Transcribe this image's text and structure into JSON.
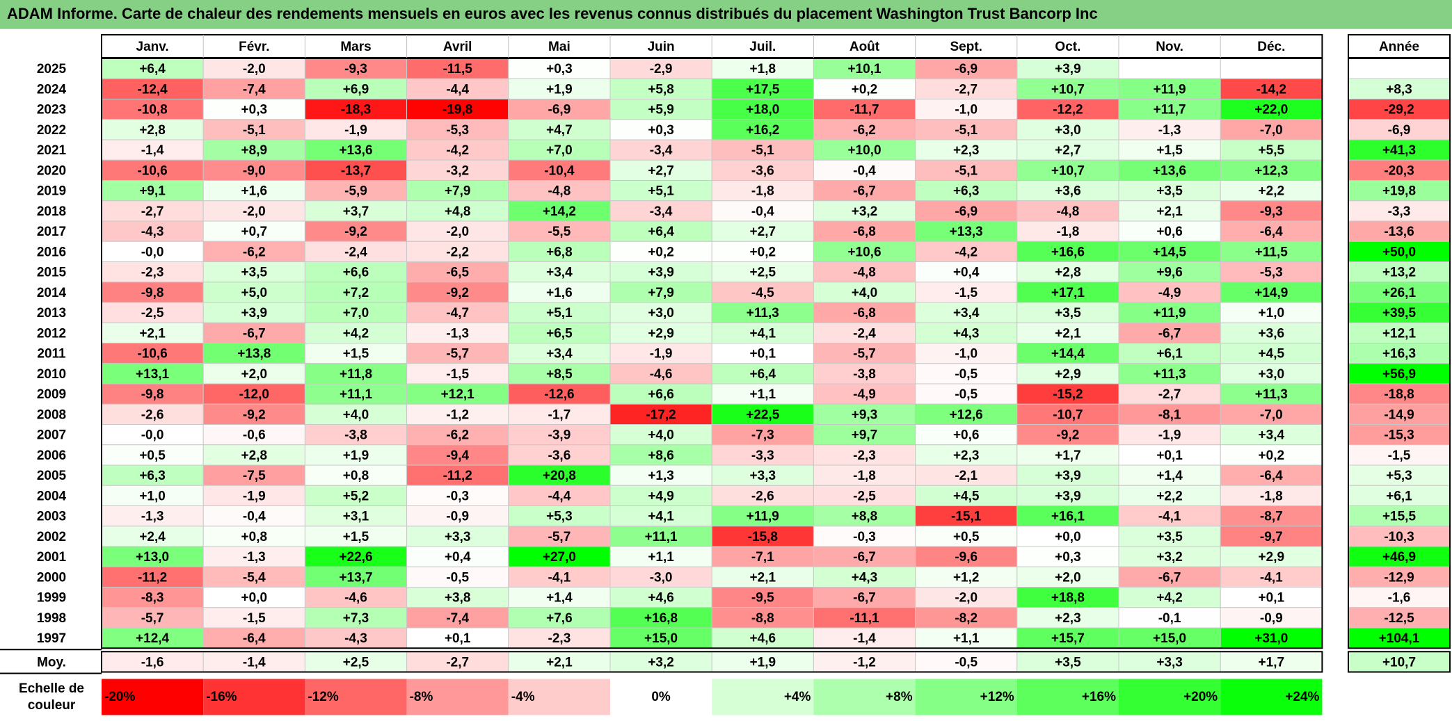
{
  "title": "ADAM Informe. Carte de chaleur des rendements mensuels en euros avec les revenus connus distribués du placement Washington Trust Bancorp Inc",
  "chart_data": {
    "type": "heatmap",
    "title": "ADAM Informe. Carte de chaleur des rendements mensuels en euros avec les revenus connus distribués du placement Washington Trust Bancorp Inc",
    "columns": [
      "Janv.",
      "Févr.",
      "Mars",
      "Avril",
      "Mai",
      "Juin",
      "Juil.",
      "Août",
      "Sept.",
      "Oct.",
      "Nov.",
      "Déc."
    ],
    "annual_header": "Année",
    "rows": [
      {
        "year": "2025",
        "values": [
          "+6,4",
          "-2,0",
          "-9,3",
          "-11,5",
          "+0,3",
          "-2,9",
          "+1,8",
          "+10,1",
          "-6,9",
          "+3,9",
          "",
          ""
        ],
        "annual": ""
      },
      {
        "year": "2024",
        "values": [
          "-12,4",
          "-7,4",
          "+6,9",
          "-4,4",
          "+1,9",
          "+5,8",
          "+17,5",
          "+0,2",
          "-2,7",
          "+10,7",
          "+11,9",
          "-14,2"
        ],
        "annual": "+8,3"
      },
      {
        "year": "2023",
        "values": [
          "-10,8",
          "+0,3",
          "-18,3",
          "-19,8",
          "-6,9",
          "+5,9",
          "+18,0",
          "-11,7",
          "-1,0",
          "-12,2",
          "+11,7",
          "+22,0"
        ],
        "annual": "-29,2"
      },
      {
        "year": "2022",
        "values": [
          "+2,8",
          "-5,1",
          "-1,9",
          "-5,3",
          "+4,7",
          "+0,3",
          "+16,2",
          "-6,2",
          "-5,1",
          "+3,0",
          "-1,3",
          "-7,0"
        ],
        "annual": "-6,9"
      },
      {
        "year": "2021",
        "values": [
          "-1,4",
          "+8,9",
          "+13,6",
          "-4,2",
          "+7,0",
          "-3,4",
          "-5,1",
          "+10,0",
          "+2,3",
          "+2,7",
          "+1,5",
          "+5,5"
        ],
        "annual": "+41,3"
      },
      {
        "year": "2020",
        "values": [
          "-10,6",
          "-9,0",
          "-13,7",
          "-3,2",
          "-10,4",
          "+2,7",
          "-3,6",
          "-0,4",
          "-5,1",
          "+10,7",
          "+13,6",
          "+12,3"
        ],
        "annual": "-20,3"
      },
      {
        "year": "2019",
        "values": [
          "+9,1",
          "+1,6",
          "-5,9",
          "+7,9",
          "-4,8",
          "+5,1",
          "-1,8",
          "-6,7",
          "+6,3",
          "+3,6",
          "+3,5",
          "+2,2"
        ],
        "annual": "+19,8"
      },
      {
        "year": "2018",
        "values": [
          "-2,7",
          "-2,0",
          "+3,7",
          "+4,8",
          "+14,2",
          "-3,4",
          "-0,4",
          "+3,2",
          "-6,9",
          "-4,8",
          "+2,1",
          "-9,3"
        ],
        "annual": "-3,3"
      },
      {
        "year": "2017",
        "values": [
          "-4,3",
          "+0,7",
          "-9,2",
          "-2,0",
          "-5,5",
          "+6,4",
          "+2,7",
          "-6,8",
          "+13,3",
          "-1,8",
          "+0,6",
          "-6,4"
        ],
        "annual": "-13,6"
      },
      {
        "year": "2016",
        "values": [
          "-0,0",
          "-6,2",
          "-2,4",
          "-2,2",
          "+6,8",
          "+0,2",
          "+0,2",
          "+10,6",
          "-4,2",
          "+16,6",
          "+14,5",
          "+11,5"
        ],
        "annual": "+50,0"
      },
      {
        "year": "2015",
        "values": [
          "-2,3",
          "+3,5",
          "+6,6",
          "-6,5",
          "+3,4",
          "+3,9",
          "+2,5",
          "-4,8",
          "+0,4",
          "+2,8",
          "+9,6",
          "-5,3"
        ],
        "annual": "+13,2"
      },
      {
        "year": "2014",
        "values": [
          "-9,8",
          "+5,0",
          "+7,2",
          "-9,2",
          "+1,6",
          "+7,9",
          "-4,5",
          "+4,0",
          "-1,5",
          "+17,1",
          "-4,9",
          "+14,9"
        ],
        "annual": "+26,1"
      },
      {
        "year": "2013",
        "values": [
          "-2,5",
          "+3,9",
          "+7,0",
          "-4,7",
          "+5,1",
          "+3,0",
          "+11,3",
          "-6,8",
          "+3,4",
          "+3,5",
          "+11,9",
          "+1,0"
        ],
        "annual": "+39,5"
      },
      {
        "year": "2012",
        "values": [
          "+2,1",
          "-6,7",
          "+4,2",
          "-1,3",
          "+6,5",
          "+2,9",
          "+4,1",
          "-2,4",
          "+4,3",
          "+2,1",
          "-6,7",
          "+3,6"
        ],
        "annual": "+12,1"
      },
      {
        "year": "2011",
        "values": [
          "-10,6",
          "+13,8",
          "+1,5",
          "-5,7",
          "+3,4",
          "-1,9",
          "+0,1",
          "-5,7",
          "-1,0",
          "+14,4",
          "+6,1",
          "+4,5"
        ],
        "annual": "+16,3"
      },
      {
        "year": "2010",
        "values": [
          "+13,1",
          "+2,0",
          "+11,8",
          "-1,5",
          "+8,5",
          "-4,6",
          "+6,4",
          "-3,8",
          "-0,5",
          "+2,9",
          "+11,3",
          "+3,0"
        ],
        "annual": "+56,9"
      },
      {
        "year": "2009",
        "values": [
          "-9,8",
          "-12,0",
          "+11,1",
          "+12,1",
          "-12,6",
          "+6,6",
          "+1,1",
          "-4,9",
          "-0,5",
          "-15,2",
          "-2,7",
          "+11,3"
        ],
        "annual": "-18,8"
      },
      {
        "year": "2008",
        "values": [
          "-2,6",
          "-9,2",
          "+4,0",
          "-1,2",
          "-1,7",
          "-17,2",
          "+22,5",
          "+9,3",
          "+12,6",
          "-10,7",
          "-8,1",
          "-7,0"
        ],
        "annual": "-14,9"
      },
      {
        "year": "2007",
        "values": [
          "-0,0",
          "-0,6",
          "-3,8",
          "-6,2",
          "-3,9",
          "+4,0",
          "-7,3",
          "+9,7",
          "+0,6",
          "-9,2",
          "-1,9",
          "+3,4"
        ],
        "annual": "-15,3"
      },
      {
        "year": "2006",
        "values": [
          "+0,5",
          "+2,8",
          "+1,9",
          "-9,4",
          "-3,6",
          "+8,6",
          "-3,3",
          "-2,3",
          "+2,3",
          "+1,7",
          "+0,1",
          "+0,2"
        ],
        "annual": "-1,5"
      },
      {
        "year": "2005",
        "values": [
          "+6,3",
          "-7,5",
          "+0,8",
          "-11,2",
          "+20,8",
          "+1,3",
          "+3,3",
          "-1,8",
          "-2,1",
          "+3,9",
          "+1,4",
          "-6,4"
        ],
        "annual": "+5,3"
      },
      {
        "year": "2004",
        "values": [
          "+1,0",
          "-1,9",
          "+5,2",
          "-0,3",
          "-4,4",
          "+4,9",
          "-2,6",
          "-2,5",
          "+4,5",
          "+3,9",
          "+2,2",
          "-1,8"
        ],
        "annual": "+6,1"
      },
      {
        "year": "2003",
        "values": [
          "-1,3",
          "-0,4",
          "+3,1",
          "-0,9",
          "+5,3",
          "+4,1",
          "+11,9",
          "+8,8",
          "-15,1",
          "+16,1",
          "-4,1",
          "-8,7"
        ],
        "annual": "+15,5"
      },
      {
        "year": "2002",
        "values": [
          "+2,4",
          "+0,8",
          "+1,5",
          "+3,3",
          "-5,7",
          "+11,1",
          "-15,8",
          "-0,3",
          "+0,5",
          "+0,0",
          "+3,5",
          "-9,7"
        ],
        "annual": "-10,3"
      },
      {
        "year": "2001",
        "values": [
          "+13,0",
          "-1,3",
          "+22,6",
          "+0,4",
          "+27,0",
          "+1,1",
          "-7,1",
          "-6,7",
          "-9,6",
          "+0,3",
          "+3,2",
          "+2,9"
        ],
        "annual": "+46,9"
      },
      {
        "year": "2000",
        "values": [
          "-11,2",
          "-5,4",
          "+13,7",
          "-0,5",
          "-4,1",
          "-3,0",
          "+2,1",
          "+4,3",
          "+1,2",
          "+2,0",
          "-6,7",
          "-4,1"
        ],
        "annual": "-12,9"
      },
      {
        "year": "1999",
        "values": [
          "-8,3",
          "+0,0",
          "-4,6",
          "+3,8",
          "+1,4",
          "+4,6",
          "-9,5",
          "-6,7",
          "-2,0",
          "+18,8",
          "+4,2",
          "+0,1"
        ],
        "annual": "-1,6"
      },
      {
        "year": "1998",
        "values": [
          "-5,7",
          "-1,5",
          "+7,3",
          "-7,4",
          "+7,6",
          "+16,8",
          "-8,8",
          "-11,1",
          "-8,2",
          "+2,3",
          "-0,1",
          "-0,9"
        ],
        "annual": "-12,5"
      },
      {
        "year": "1997",
        "values": [
          "+12,4",
          "-6,4",
          "-4,3",
          "+0,1",
          "-2,3",
          "+15,0",
          "+4,6",
          "-1,4",
          "+1,1",
          "+15,7",
          "+15,0",
          "+31,0"
        ],
        "annual": "+104,1"
      }
    ],
    "average": {
      "label": "Moy.",
      "values": [
        "-1,6",
        "-1,4",
        "+2,5",
        "-2,7",
        "+2,1",
        "+3,2",
        "+1,9",
        "-1,2",
        "-0,5",
        "+3,5",
        "+3,3",
        "+1,7"
      ],
      "annual": "+10,7"
    },
    "scale": {
      "label_line1": "Echelle de",
      "label_line2": "couleur",
      "stops": [
        {
          "label": "-20%",
          "value": -20,
          "color": "#ff0000"
        },
        {
          "label": "-16%",
          "value": -16,
          "color": "#ff3333"
        },
        {
          "label": "-12%",
          "value": -12,
          "color": "#ff6666"
        },
        {
          "label": "-8%",
          "value": -8,
          "color": "#ff9999"
        },
        {
          "label": "-4%",
          "value": -4,
          "color": "#ffcccc"
        },
        {
          "label": "0%",
          "value": 0,
          "color": "#ffffff"
        },
        {
          "label": "+4%",
          "value": 4,
          "color": "#d6ffd6"
        },
        {
          "label": "+8%",
          "value": 8,
          "color": "#adffad"
        },
        {
          "label": "+12%",
          "value": 12,
          "color": "#85ff85"
        },
        {
          "label": "+16%",
          "value": 16,
          "color": "#5cff5c"
        },
        {
          "label": "+20%",
          "value": 20,
          "color": "#33ff33"
        },
        {
          "label": "+24%",
          "value": 24,
          "color": "#0aff0a"
        }
      ]
    },
    "colors": {
      "negative_max": "#ff0000",
      "neutral": "#ffffff",
      "positive_max": "#00ff00",
      "title_bg": "#86d086"
    }
  }
}
